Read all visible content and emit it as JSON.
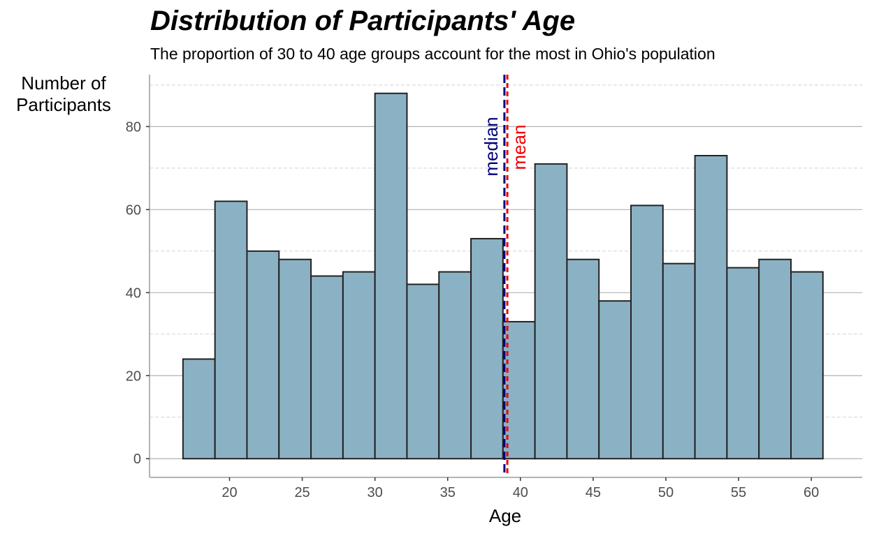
{
  "chart_data": {
    "type": "bar",
    "title": "Distribution of Participants' Age",
    "subtitle": "The proportion of 30 to 40 age groups account for the most in Ohio's population",
    "xlabel": "Age",
    "ylabel_lines": [
      "Number of",
      "Participants"
    ],
    "xlim": [
      14.5,
      63.5
    ],
    "ylim": [
      -4.5,
      92.5
    ],
    "x_ticks": [
      20,
      25,
      30,
      35,
      40,
      45,
      50,
      55,
      60
    ],
    "y_ticks": [
      0,
      20,
      40,
      60,
      80
    ],
    "bin_width": 2.2,
    "bins": [
      {
        "x_start": 16.8,
        "x_end": 19.0,
        "count": 24
      },
      {
        "x_start": 19.0,
        "x_end": 21.2,
        "count": 62
      },
      {
        "x_start": 21.2,
        "x_end": 23.4,
        "count": 50
      },
      {
        "x_start": 23.4,
        "x_end": 25.6,
        "count": 48
      },
      {
        "x_start": 25.6,
        "x_end": 27.8,
        "count": 44
      },
      {
        "x_start": 27.8,
        "x_end": 30.0,
        "count": 45
      },
      {
        "x_start": 30.0,
        "x_end": 32.2,
        "count": 88
      },
      {
        "x_start": 32.2,
        "x_end": 34.4,
        "count": 42
      },
      {
        "x_start": 34.4,
        "x_end": 36.6,
        "count": 45
      },
      {
        "x_start": 36.6,
        "x_end": 38.8,
        "count": 53
      },
      {
        "x_start": 38.8,
        "x_end": 41.0,
        "count": 33
      },
      {
        "x_start": 41.0,
        "x_end": 43.2,
        "count": 71
      },
      {
        "x_start": 43.2,
        "x_end": 45.4,
        "count": 48
      },
      {
        "x_start": 45.4,
        "x_end": 47.6,
        "count": 38
      },
      {
        "x_start": 47.6,
        "x_end": 49.8,
        "count": 61
      },
      {
        "x_start": 49.8,
        "x_end": 52.0,
        "count": 47
      },
      {
        "x_start": 52.0,
        "x_end": 54.2,
        "count": 73
      },
      {
        "x_start": 54.2,
        "x_end": 56.4,
        "count": 46
      },
      {
        "x_start": 56.4,
        "x_end": 58.6,
        "count": 48
      },
      {
        "x_start": 58.6,
        "x_end": 60.8,
        "count": 45
      }
    ],
    "reference_lines": [
      {
        "label": "median",
        "value": 38.9,
        "color": "#000080"
      },
      {
        "label": "mean",
        "value": 39.1,
        "color": "#ee0000"
      }
    ],
    "bar_fill": "#8bb2c4",
    "bar_stroke": "#222222",
    "grid": true,
    "legend": "none"
  }
}
